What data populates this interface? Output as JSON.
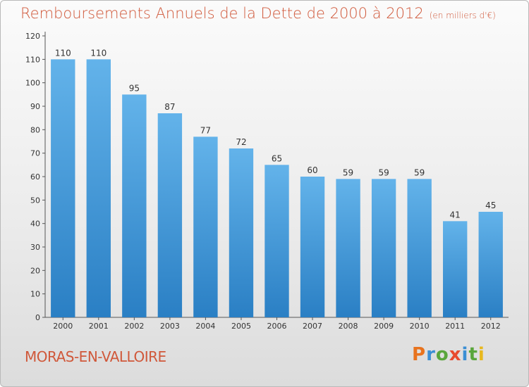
{
  "header": {
    "title": "Remboursements Annuels de la Dette de 2000 à 2012",
    "subtitle": "(en milliers d'€)"
  },
  "footer": {
    "commune": "MORAS-EN-VALLOIRE",
    "logo_text": "Proxiti"
  },
  "colors": {
    "title": "#d0583a",
    "bar_top": "#63b3ea",
    "bar_bottom": "#2a7fc4",
    "logo_letters": [
      "#e8731e",
      "#3b8fd4",
      "#5aa63c",
      "#e84a2e",
      "#3b8fd4",
      "#5aa63c",
      "#e8b81e"
    ]
  },
  "chart_data": {
    "type": "bar",
    "title": "Remboursements Annuels de la Dette de 2000 à 2012",
    "categories": [
      "2000",
      "2001",
      "2002",
      "2003",
      "2004",
      "2005",
      "2006",
      "2007",
      "2008",
      "2009",
      "2010",
      "2011",
      "2012"
    ],
    "values": [
      110,
      110,
      95,
      87,
      77,
      72,
      65,
      60,
      59,
      59,
      59,
      41,
      45
    ],
    "ylim": [
      0,
      120
    ],
    "yticks": [
      0,
      10,
      20,
      30,
      40,
      50,
      60,
      70,
      80,
      90,
      100,
      110,
      120
    ],
    "grid": false,
    "data_labels": true
  }
}
